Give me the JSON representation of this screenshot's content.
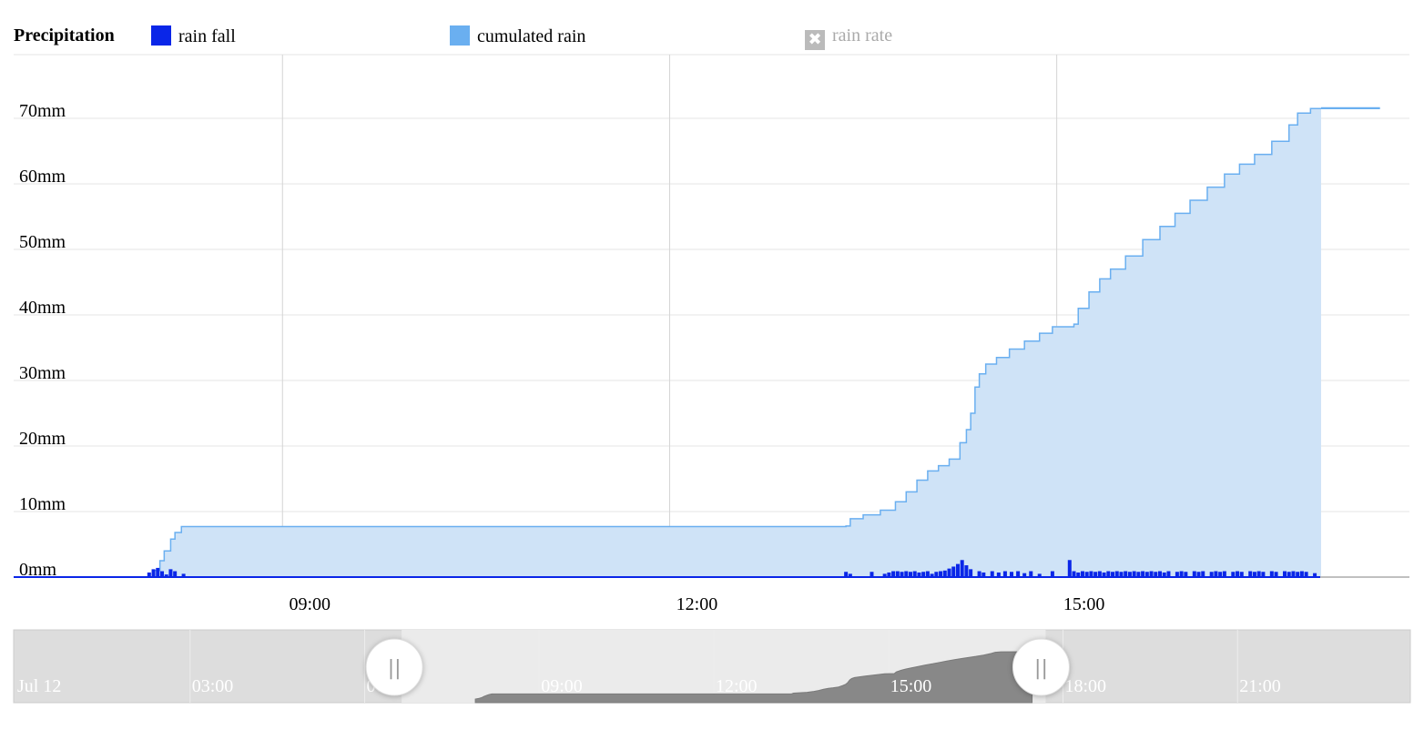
{
  "legend": {
    "title": "Precipitation",
    "items": [
      {
        "label": "rain fall",
        "color": "#0a26e8",
        "enabled": true
      },
      {
        "label": "cumulated rain",
        "color": "#6aaff0",
        "enabled": true
      },
      {
        "label": "rain rate",
        "color": "#bbbbbb",
        "enabled": false
      }
    ]
  },
  "chart_data": {
    "type": "area",
    "y_unit": "mm",
    "y_ticks": [
      0,
      10,
      20,
      30,
      40,
      50,
      60,
      70
    ],
    "y_tick_labels": [
      "0mm",
      "10mm",
      "20mm",
      "30mm",
      "40mm",
      "50mm",
      "60mm",
      "70mm"
    ],
    "ylim": [
      0,
      80
    ],
    "xlim": [
      "06:55",
      "17:44"
    ],
    "x_ticks": [
      "09:00",
      "12:00",
      "15:00"
    ],
    "grid": true,
    "legend_position": "top",
    "series": [
      {
        "name": "cumulated rain",
        "kind": "step-area",
        "color": "#6aaff0",
        "fill": "#cfe3f7",
        "points": [
          [
            "07:56",
            0
          ],
          [
            "08:00",
            1.0
          ],
          [
            "08:03",
            2.5
          ],
          [
            "08:05",
            4.0
          ],
          [
            "08:08",
            5.8
          ],
          [
            "08:10",
            6.8
          ],
          [
            "08:13",
            7.7
          ],
          [
            "13:22",
            7.8
          ],
          [
            "13:24",
            8.9
          ],
          [
            "13:30",
            9.5
          ],
          [
            "13:38",
            10.2
          ],
          [
            "13:45",
            11.5
          ],
          [
            "13:50",
            13.0
          ],
          [
            "13:55",
            14.8
          ],
          [
            "14:00",
            16.2
          ],
          [
            "14:05",
            17.0
          ],
          [
            "14:10",
            18.0
          ],
          [
            "14:15",
            20.5
          ],
          [
            "14:18",
            22.5
          ],
          [
            "14:20",
            25.0
          ],
          [
            "14:22",
            29.0
          ],
          [
            "14:24",
            31.0
          ],
          [
            "14:27",
            32.5
          ],
          [
            "14:32",
            33.5
          ],
          [
            "14:38",
            34.8
          ],
          [
            "14:45",
            36.0
          ],
          [
            "14:52",
            37.2
          ],
          [
            "14:58",
            38.2
          ],
          [
            "15:08",
            38.6
          ],
          [
            "15:10",
            41.0
          ],
          [
            "15:15",
            43.5
          ],
          [
            "15:20",
            45.5
          ],
          [
            "15:25",
            47.0
          ],
          [
            "15:32",
            49.0
          ],
          [
            "15:40",
            51.5
          ],
          [
            "15:48",
            53.5
          ],
          [
            "15:55",
            55.5
          ],
          [
            "16:02",
            57.5
          ],
          [
            "16:10",
            59.5
          ],
          [
            "16:18",
            61.5
          ],
          [
            "16:25",
            63.0
          ],
          [
            "16:32",
            64.5
          ],
          [
            "16:40",
            66.5
          ],
          [
            "16:48",
            69.0
          ],
          [
            "16:52",
            70.8
          ],
          [
            "16:58",
            71.5
          ],
          [
            "17:30",
            71.6
          ]
        ]
      },
      {
        "name": "rain fall",
        "kind": "column",
        "color": "#0a26e8",
        "points": [
          [
            "07:58",
            0.7
          ],
          [
            "08:00",
            1.2
          ],
          [
            "08:02",
            1.4
          ],
          [
            "08:04",
            0.9
          ],
          [
            "08:06",
            0.4
          ],
          [
            "08:08",
            1.2
          ],
          [
            "08:10",
            0.9
          ],
          [
            "08:14",
            0.5
          ],
          [
            "13:22",
            0.8
          ],
          [
            "13:24",
            0.5
          ],
          [
            "13:34",
            0.8
          ],
          [
            "13:40",
            0.5
          ],
          [
            "13:42",
            0.7
          ],
          [
            "13:44",
            0.9
          ],
          [
            "13:46",
            0.9
          ],
          [
            "13:48",
            0.8
          ],
          [
            "13:50",
            0.9
          ],
          [
            "13:52",
            0.8
          ],
          [
            "13:54",
            0.9
          ],
          [
            "13:56",
            0.7
          ],
          [
            "13:58",
            0.8
          ],
          [
            "14:00",
            0.9
          ],
          [
            "14:02",
            0.5
          ],
          [
            "14:04",
            0.8
          ],
          [
            "14:06",
            0.9
          ],
          [
            "14:08",
            1.0
          ],
          [
            "14:10",
            1.3
          ],
          [
            "14:12",
            1.6
          ],
          [
            "14:14",
            2.0
          ],
          [
            "14:16",
            2.6
          ],
          [
            "14:18",
            1.8
          ],
          [
            "14:20",
            1.2
          ],
          [
            "14:24",
            0.9
          ],
          [
            "14:26",
            0.7
          ],
          [
            "14:30",
            0.9
          ],
          [
            "14:33",
            0.7
          ],
          [
            "14:36",
            0.9
          ],
          [
            "14:39",
            0.8
          ],
          [
            "14:42",
            0.9
          ],
          [
            "14:45",
            0.6
          ],
          [
            "14:48",
            0.9
          ],
          [
            "14:52",
            0.5
          ],
          [
            "14:58",
            0.9
          ],
          [
            "15:06",
            2.6
          ],
          [
            "15:08",
            0.9
          ],
          [
            "15:10",
            0.7
          ],
          [
            "15:12",
            0.9
          ],
          [
            "15:14",
            0.8
          ],
          [
            "15:16",
            0.9
          ],
          [
            "15:18",
            0.8
          ],
          [
            "15:20",
            0.9
          ],
          [
            "15:22",
            0.7
          ],
          [
            "15:24",
            0.9
          ],
          [
            "15:26",
            0.8
          ],
          [
            "15:28",
            0.9
          ],
          [
            "15:30",
            0.8
          ],
          [
            "15:32",
            0.9
          ],
          [
            "15:34",
            0.8
          ],
          [
            "15:36",
            0.9
          ],
          [
            "15:38",
            0.8
          ],
          [
            "15:40",
            0.9
          ],
          [
            "15:42",
            0.8
          ],
          [
            "15:44",
            0.9
          ],
          [
            "15:46",
            0.8
          ],
          [
            "15:48",
            0.9
          ],
          [
            "15:50",
            0.7
          ],
          [
            "15:52",
            0.9
          ],
          [
            "15:56",
            0.8
          ],
          [
            "15:58",
            0.9
          ],
          [
            "16:00",
            0.8
          ],
          [
            "16:04",
            0.9
          ],
          [
            "16:06",
            0.8
          ],
          [
            "16:08",
            0.9
          ],
          [
            "16:12",
            0.8
          ],
          [
            "16:14",
            0.9
          ],
          [
            "16:16",
            0.8
          ],
          [
            "16:18",
            0.9
          ],
          [
            "16:22",
            0.8
          ],
          [
            "16:24",
            0.9
          ],
          [
            "16:26",
            0.8
          ],
          [
            "16:30",
            0.9
          ],
          [
            "16:32",
            0.8
          ],
          [
            "16:34",
            0.9
          ],
          [
            "16:36",
            0.8
          ],
          [
            "16:40",
            0.9
          ],
          [
            "16:42",
            0.8
          ],
          [
            "16:46",
            0.9
          ],
          [
            "16:48",
            0.8
          ],
          [
            "16:50",
            0.9
          ],
          [
            "16:52",
            0.8
          ],
          [
            "16:54",
            0.9
          ],
          [
            "16:56",
            0.8
          ],
          [
            "17:00",
            0.6
          ]
        ]
      }
    ]
  },
  "navigator": {
    "labels": [
      "Jul 12",
      "03:00",
      "06:00",
      "09:00",
      "12:00",
      "15:00",
      "18:00",
      "21:00"
    ],
    "range_start": "06:40",
    "range_end": "17:44",
    "data_end": "17:30",
    "handle_glyph": "||"
  }
}
